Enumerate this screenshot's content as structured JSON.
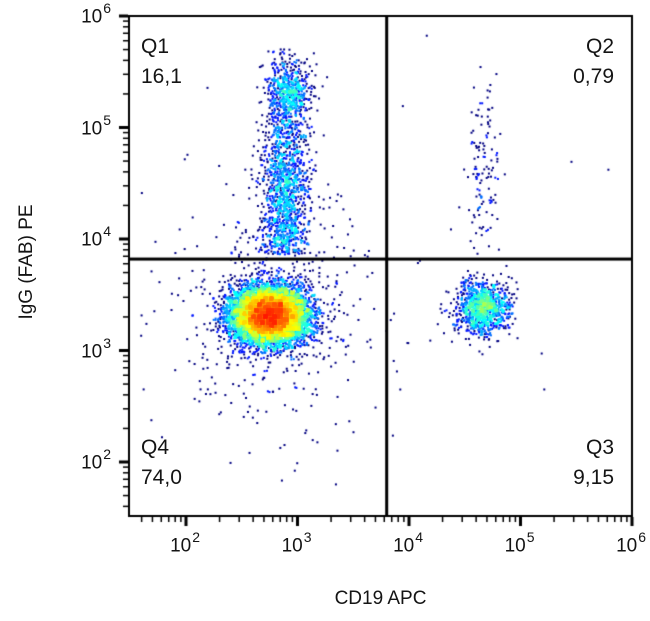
{
  "chart_data": {
    "type": "scatter",
    "subtype": "flow-cytometry-pseudocolor-density-plot",
    "title": "",
    "xlabel": "CD19 APC",
    "ylabel": "IgG (FAB) PE",
    "x_scale": "log10",
    "y_scale": "log10",
    "x_range_log10": [
      1.49,
      6.0
    ],
    "y_range_log10": [
      1.52,
      6.0
    ],
    "tick_label_base": "10",
    "x_tick_exponents": [
      2,
      3,
      4,
      5,
      6
    ],
    "y_tick_exponents": [
      2,
      3,
      4,
      5,
      6
    ],
    "grid": false,
    "legend": false,
    "colormap": "jet",
    "point_colors": {
      "low_density": "#00008B",
      "mid_density": "#00FF00",
      "high_density": "#FF2000"
    },
    "quadrant_gate": {
      "x_log10": 3.8,
      "y_log10": 3.82,
      "line_color": "#000000"
    },
    "quadrants": [
      {
        "name": "Q1",
        "value": "16,1",
        "position": "top-left"
      },
      {
        "name": "Q2",
        "value": "0,79",
        "position": "top-right"
      },
      {
        "name": "Q3",
        "value": "9,15",
        "position": "bottom-right"
      },
      {
        "name": "Q4",
        "value": "74,0",
        "position": "bottom-left"
      }
    ],
    "populations": [
      {
        "name": "cd19-negative igg-low main population",
        "n": 8800,
        "cx": 2.75,
        "cy": 3.32,
        "sx": 0.165,
        "sy": 0.125
      },
      {
        "name": "cd19-negative igg-positive smear (Q1 column)",
        "n": 1500,
        "cx": 2.89,
        "cy": 4.3,
        "sx": 0.105,
        "sy": 0.52,
        "y_clip": [
          3.86,
          5.72
        ]
      },
      {
        "name": "cd19-negative igg-high cluster",
        "n": 450,
        "cx": 2.93,
        "cy": 5.3,
        "sx": 0.095,
        "sy": 0.13
      },
      {
        "name": "cd19-positive igg-low population (Q3 cluster)",
        "n": 1100,
        "cx": 4.66,
        "cy": 3.38,
        "sx": 0.115,
        "sy": 0.12
      },
      {
        "name": "cd19-positive igg-positive smear (Q2 column)",
        "n": 120,
        "cx": 4.67,
        "cy": 4.55,
        "sx": 0.07,
        "sy": 0.45,
        "y_clip": [
          3.9,
          5.55
        ]
      },
      {
        "name": "diffuse background around main population",
        "n": 550,
        "cx": 2.78,
        "cy": 3.35,
        "sx": 0.42,
        "sy": 0.5
      },
      {
        "name": "sparse background",
        "n": 50,
        "distribution": "uniform",
        "x_min": 1.6,
        "x_max": 5.9,
        "y_min": 2.0,
        "y_max": 5.9
      }
    ]
  }
}
